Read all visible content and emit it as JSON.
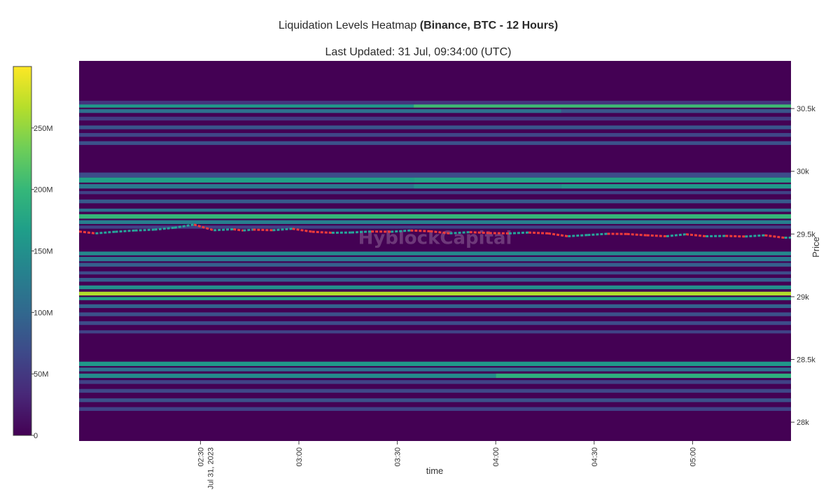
{
  "chart_data": {
    "type": "heatmap",
    "title": "Liquidation Levels Heatmap",
    "title_bold": "(Binance, BTC - 12 Hours)",
    "subtitle": "Last Updated: 31 Jul, 09:34:00 (UTC)",
    "xlabel": "time",
    "ylabel": "Price",
    "x_ticks": [
      "02:30",
      "03:00",
      "03:30",
      "04:00",
      "04:30",
      "05:00"
    ],
    "x_tick_sub": "Jul 31, 2023",
    "y_ticks": [
      {
        "value": 28000,
        "label": "28k"
      },
      {
        "value": 28500,
        "label": "28.5k"
      },
      {
        "value": 29000,
        "label": "29k"
      },
      {
        "value": 29500,
        "label": "29.5k"
      },
      {
        "value": 30000,
        "label": "30k"
      },
      {
        "value": 30500,
        "label": "30.5k"
      }
    ],
    "ylim": [
      27850,
      30880
    ],
    "x_minutes": [
      113,
      330
    ],
    "colorbar": {
      "min": 0,
      "max": 300000000,
      "ticks": [
        {
          "value": 0,
          "label": "0"
        },
        {
          "value": 50000000,
          "label": "50M"
        },
        {
          "value": 100000000,
          "label": "100M"
        },
        {
          "value": 150000000,
          "label": "150M"
        },
        {
          "value": 200000000,
          "label": "200M"
        },
        {
          "value": 250000000,
          "label": "250M"
        }
      ],
      "colorscale": [
        "#440154",
        "#482878",
        "#3e4989",
        "#31688e",
        "#26828e",
        "#1f9e89",
        "#35b779",
        "#6ece58",
        "#b5de2b",
        "#fde725"
      ]
    },
    "bands": [
      {
        "price": 30545,
        "height": 35,
        "segments": [
          {
            "x0": 113,
            "x1": 215,
            "value": 45000000
          },
          {
            "x0": 215,
            "x1": 330,
            "value": 45000000
          }
        ]
      },
      {
        "price": 30520,
        "height": 25,
        "segments": [
          {
            "x0": 113,
            "x1": 215,
            "value": 160000000
          },
          {
            "x0": 215,
            "x1": 330,
            "value": 205000000
          }
        ]
      },
      {
        "price": 30480,
        "height": 30,
        "segments": [
          {
            "x0": 113,
            "x1": 260,
            "value": 110000000
          },
          {
            "x0": 260,
            "x1": 330,
            "value": 80000000
          }
        ]
      },
      {
        "price": 30420,
        "height": 30,
        "segments": [
          {
            "x0": 113,
            "x1": 330,
            "value": 55000000
          }
        ]
      },
      {
        "price": 30350,
        "height": 30,
        "segments": [
          {
            "x0": 113,
            "x1": 330,
            "value": 80000000
          }
        ]
      },
      {
        "price": 30290,
        "height": 30,
        "segments": [
          {
            "x0": 113,
            "x1": 330,
            "value": 65000000
          }
        ]
      },
      {
        "price": 30225,
        "height": 30,
        "segments": [
          {
            "x0": 113,
            "x1": 330,
            "value": 75000000
          }
        ]
      },
      {
        "price": 29970,
        "height": 40,
        "segments": [
          {
            "x0": 113,
            "x1": 330,
            "value": 70000000
          }
        ]
      },
      {
        "price": 29930,
        "height": 40,
        "segments": [
          {
            "x0": 113,
            "x1": 215,
            "value": 170000000
          },
          {
            "x0": 215,
            "x1": 330,
            "value": 175000000
          }
        ]
      },
      {
        "price": 29880,
        "height": 35,
        "segments": [
          {
            "x0": 113,
            "x1": 215,
            "value": 120000000
          },
          {
            "x0": 215,
            "x1": 260,
            "value": 150000000
          },
          {
            "x0": 260,
            "x1": 330,
            "value": 160000000
          }
        ]
      },
      {
        "price": 29830,
        "height": 25,
        "segments": [
          {
            "x0": 113,
            "x1": 330,
            "value": 60000000
          }
        ]
      },
      {
        "price": 29760,
        "height": 30,
        "segments": [
          {
            "x0": 113,
            "x1": 330,
            "value": 85000000
          }
        ]
      },
      {
        "price": 29690,
        "height": 25,
        "segments": [
          {
            "x0": 113,
            "x1": 330,
            "value": 110000000
          }
        ]
      },
      {
        "price": 29640,
        "height": 35,
        "segments": [
          {
            "x0": 113,
            "x1": 330,
            "value": 200000000
          }
        ]
      },
      {
        "price": 29595,
        "height": 30,
        "segments": [
          {
            "x0": 113,
            "x1": 330,
            "value": 130000000
          }
        ]
      },
      {
        "price": 29555,
        "height": 25,
        "segments": [
          {
            "x0": 113,
            "x1": 330,
            "value": 60000000
          }
        ]
      },
      {
        "price": 29345,
        "height": 30,
        "segments": [
          {
            "x0": 113,
            "x1": 330,
            "value": 140000000
          }
        ]
      },
      {
        "price": 29300,
        "height": 35,
        "segments": [
          {
            "x0": 113,
            "x1": 330,
            "value": 120000000
          }
        ]
      },
      {
        "price": 29255,
        "height": 30,
        "segments": [
          {
            "x0": 113,
            "x1": 330,
            "value": 90000000
          }
        ]
      },
      {
        "price": 29190,
        "height": 25,
        "segments": [
          {
            "x0": 113,
            "x1": 330,
            "value": 70000000
          }
        ]
      },
      {
        "price": 29135,
        "height": 30,
        "segments": [
          {
            "x0": 113,
            "x1": 330,
            "value": 90000000
          }
        ]
      },
      {
        "price": 29075,
        "height": 30,
        "segments": [
          {
            "x0": 113,
            "x1": 330,
            "value": 150000000
          }
        ]
      },
      {
        "price": 29025,
        "height": 30,
        "segments": [
          {
            "x0": 113,
            "x1": 330,
            "value": 265000000
          }
        ]
      },
      {
        "price": 28985,
        "height": 25,
        "segments": [
          {
            "x0": 113,
            "x1": 330,
            "value": 170000000
          }
        ]
      },
      {
        "price": 28925,
        "height": 30,
        "segments": [
          {
            "x0": 113,
            "x1": 330,
            "value": 95000000
          }
        ]
      },
      {
        "price": 28860,
        "height": 30,
        "segments": [
          {
            "x0": 113,
            "x1": 330,
            "value": 75000000
          }
        ]
      },
      {
        "price": 28790,
        "height": 30,
        "segments": [
          {
            "x0": 113,
            "x1": 330,
            "value": 70000000
          }
        ]
      },
      {
        "price": 28720,
        "height": 25,
        "segments": [
          {
            "x0": 113,
            "x1": 330,
            "value": 60000000
          }
        ]
      },
      {
        "price": 28465,
        "height": 35,
        "segments": [
          {
            "x0": 113,
            "x1": 330,
            "value": 160000000
          }
        ]
      },
      {
        "price": 28420,
        "height": 30,
        "segments": [
          {
            "x0": 113,
            "x1": 330,
            "value": 110000000
          }
        ]
      },
      {
        "price": 28370,
        "height": 35,
        "segments": [
          {
            "x0": 113,
            "x1": 240,
            "value": 145000000
          },
          {
            "x0": 240,
            "x1": 330,
            "value": 190000000
          }
        ]
      },
      {
        "price": 28320,
        "height": 30,
        "segments": [
          {
            "x0": 113,
            "x1": 330,
            "value": 60000000
          }
        ]
      },
      {
        "price": 28250,
        "height": 30,
        "segments": [
          {
            "x0": 113,
            "x1": 330,
            "value": 65000000
          }
        ]
      },
      {
        "price": 28175,
        "height": 30,
        "segments": [
          {
            "x0": 113,
            "x1": 330,
            "value": 75000000
          }
        ]
      },
      {
        "price": 28105,
        "height": 30,
        "segments": [
          {
            "x0": 113,
            "x1": 330,
            "value": 60000000
          }
        ]
      }
    ],
    "price_line": {
      "x": [
        113,
        118,
        124,
        130,
        136,
        142,
        148,
        154,
        160,
        163,
        166,
        172,
        178,
        184,
        190,
        196,
        202,
        208,
        214,
        220,
        226,
        232,
        238,
        244,
        250,
        256,
        262,
        268,
        274,
        280,
        286,
        292,
        298,
        304,
        310,
        316,
        322,
        328,
        330
      ],
      "y": [
        29520,
        29505,
        29518,
        29528,
        29535,
        29550,
        29575,
        29530,
        29538,
        29528,
        29535,
        29530,
        29542,
        29518,
        29510,
        29512,
        29520,
        29518,
        29528,
        29522,
        29505,
        29515,
        29508,
        29505,
        29512,
        29505,
        29482,
        29492,
        29502,
        29500,
        29490,
        29482,
        29498,
        29482,
        29485,
        29480,
        29490,
        29470,
        29472
      ]
    },
    "watermark": "HyblockCapital"
  }
}
